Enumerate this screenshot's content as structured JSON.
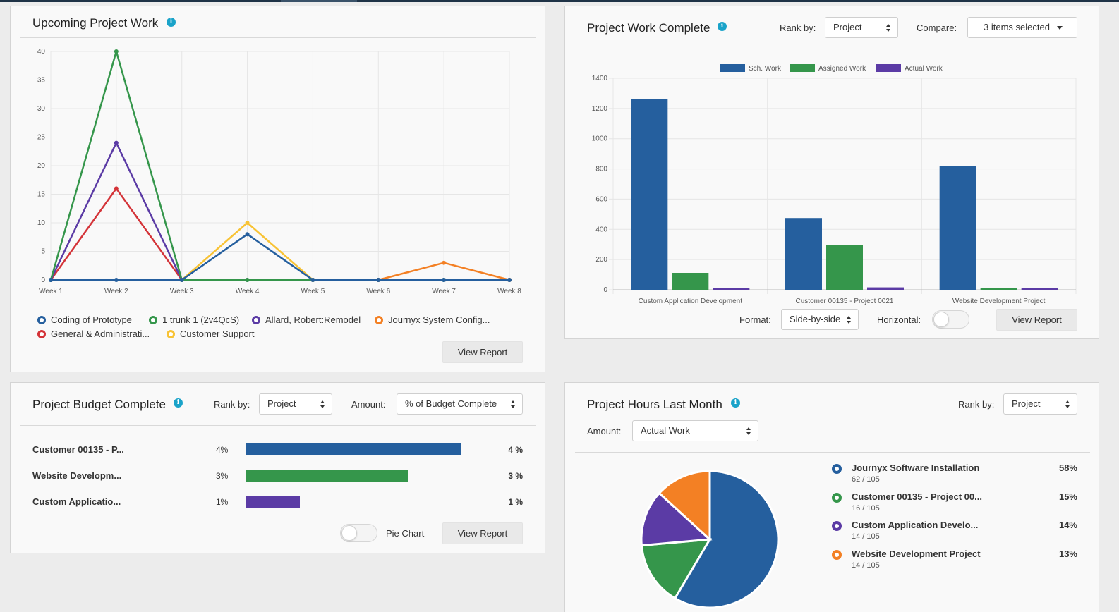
{
  "colors": {
    "blue": "#255f9e",
    "green": "#35964b",
    "purple": "#5b3ba5",
    "orange": "#f38024",
    "red": "#d43338",
    "yellow": "#f8c335",
    "info": "#1aa3c9"
  },
  "upcoming": {
    "title": "Upcoming Project Work",
    "info_icon": "info-icon",
    "view_report": "View Report",
    "legend": [
      {
        "name": "Coding of Prototype",
        "color": "#255f9e"
      },
      {
        "name": "1 trunk 1 (2v4QcS)",
        "color": "#35964b"
      },
      {
        "name": "Allard, Robert:Remodel",
        "color": "#5b3ba5"
      },
      {
        "name": "Journyx System Config...",
        "color": "#f38024"
      },
      {
        "name": "General & Administrati...",
        "color": "#d43338"
      },
      {
        "name": "Customer Support",
        "color": "#f8c335"
      }
    ]
  },
  "work_complete": {
    "title": "Project Work Complete",
    "rank_label": "Rank by:",
    "rank_value": "Project",
    "compare_label": "Compare:",
    "compare_value": "3 items selected",
    "format_label": "Format:",
    "format_value": "Side-by-side",
    "horizontal_label": "Horizontal:",
    "view_report": "View Report"
  },
  "budget": {
    "title": "Project Budget Complete",
    "rank_label": "Rank by:",
    "rank_value": "Project",
    "amount_label": "Amount:",
    "amount_value": "% of Budget Complete",
    "pie_chart_label": "Pie Chart",
    "view_report": "View Report",
    "rows": [
      {
        "name": "Customer 00135 - P...",
        "pct_left": "4%",
        "pct_right": "4 %",
        "value": 4,
        "color": "#255f9e"
      },
      {
        "name": "Website Developm...",
        "pct_left": "3%",
        "pct_right": "3 %",
        "value": 3,
        "color": "#35964b"
      },
      {
        "name": "Custom Applicatio...",
        "pct_left": "1%",
        "pct_right": "1 %",
        "value": 1,
        "color": "#5b3ba5"
      }
    ]
  },
  "hours": {
    "title": "Project Hours Last Month",
    "rank_label": "Rank by:",
    "rank_value": "Project",
    "amount_label": "Amount:",
    "amount_value": "Actual Work",
    "legend": [
      {
        "name": "Journyx Software Installation",
        "sub": "62 / 105",
        "pct": "58%",
        "color": "#255f9e"
      },
      {
        "name": "Customer 00135 - Project 00...",
        "sub": "16 / 105",
        "pct": "15%",
        "color": "#35964b"
      },
      {
        "name": "Custom Application Develo...",
        "sub": "14 / 105",
        "pct": "14%",
        "color": "#5b3ba5"
      },
      {
        "name": "Website Development Project",
        "sub": "14 / 105",
        "pct": "13%",
        "color": "#f38024"
      }
    ]
  },
  "chart_data": [
    {
      "type": "line",
      "x": [
        "Week 1",
        "Week 2",
        "Week 3",
        "Week 4",
        "Week 5",
        "Week 6",
        "Week 7",
        "Week 8"
      ],
      "ylim": [
        0,
        40
      ],
      "yticks": [
        0,
        5,
        10,
        15,
        20,
        25,
        30,
        35,
        40
      ],
      "grid": true,
      "legend_position": "bottom",
      "series": [
        {
          "name": "Coding of Prototype",
          "color": "#255f9e",
          "values": [
            0,
            0,
            0,
            8,
            0,
            0,
            0,
            0
          ]
        },
        {
          "name": "1 trunk 1 (2v4QcS)",
          "color": "#35964b",
          "values": [
            0,
            40,
            0,
            0,
            0,
            0,
            0,
            0
          ]
        },
        {
          "name": "Allard, Robert:Remodel",
          "color": "#5b3ba5",
          "values": [
            0,
            24,
            0,
            0,
            0,
            0,
            0,
            0
          ]
        },
        {
          "name": "Journyx System Config...",
          "color": "#f38024",
          "values": [
            null,
            null,
            null,
            null,
            null,
            0,
            3,
            0
          ]
        },
        {
          "name": "General & Administrati...",
          "color": "#d43338",
          "values": [
            0,
            16,
            0,
            null,
            null,
            null,
            null,
            null
          ]
        },
        {
          "name": "Customer Support",
          "color": "#f8c335",
          "values": [
            null,
            null,
            0,
            10,
            0,
            null,
            null,
            null
          ]
        }
      ]
    },
    {
      "type": "bar",
      "categories": [
        "Custom Application Development",
        "Customer 00135 - Project 0021",
        "Website Development Project"
      ],
      "ylim": [
        0,
        1400
      ],
      "yticks": [
        0,
        200,
        400,
        600,
        800,
        1000,
        1200,
        1400
      ],
      "grid": true,
      "legend_position": "top",
      "series": [
        {
          "name": "Sch. Work",
          "color": "#255f9e",
          "values": [
            1260,
            475,
            820
          ]
        },
        {
          "name": "Assigned Work",
          "color": "#35964b",
          "values": [
            112,
            295,
            12
          ]
        },
        {
          "name": "Actual Work",
          "color": "#5b3ba5",
          "values": [
            14,
            16,
            14
          ]
        }
      ]
    },
    {
      "type": "bar",
      "orientation": "horizontal",
      "categories": [
        "Customer 00135 - P...",
        "Website Developm...",
        "Custom Applicatio..."
      ],
      "values": [
        4,
        3,
        1
      ]
    },
    {
      "type": "pie",
      "categories": [
        "Journyx Software Installation",
        "Customer 00135 - Project 00...",
        "Custom Application Develo...",
        "Website Development Project"
      ],
      "values": [
        62,
        16,
        14,
        14
      ],
      "percentages": [
        58,
        15,
        14,
        13
      ],
      "colors": [
        "#255f9e",
        "#35964b",
        "#5b3ba5",
        "#f38024"
      ]
    }
  ]
}
